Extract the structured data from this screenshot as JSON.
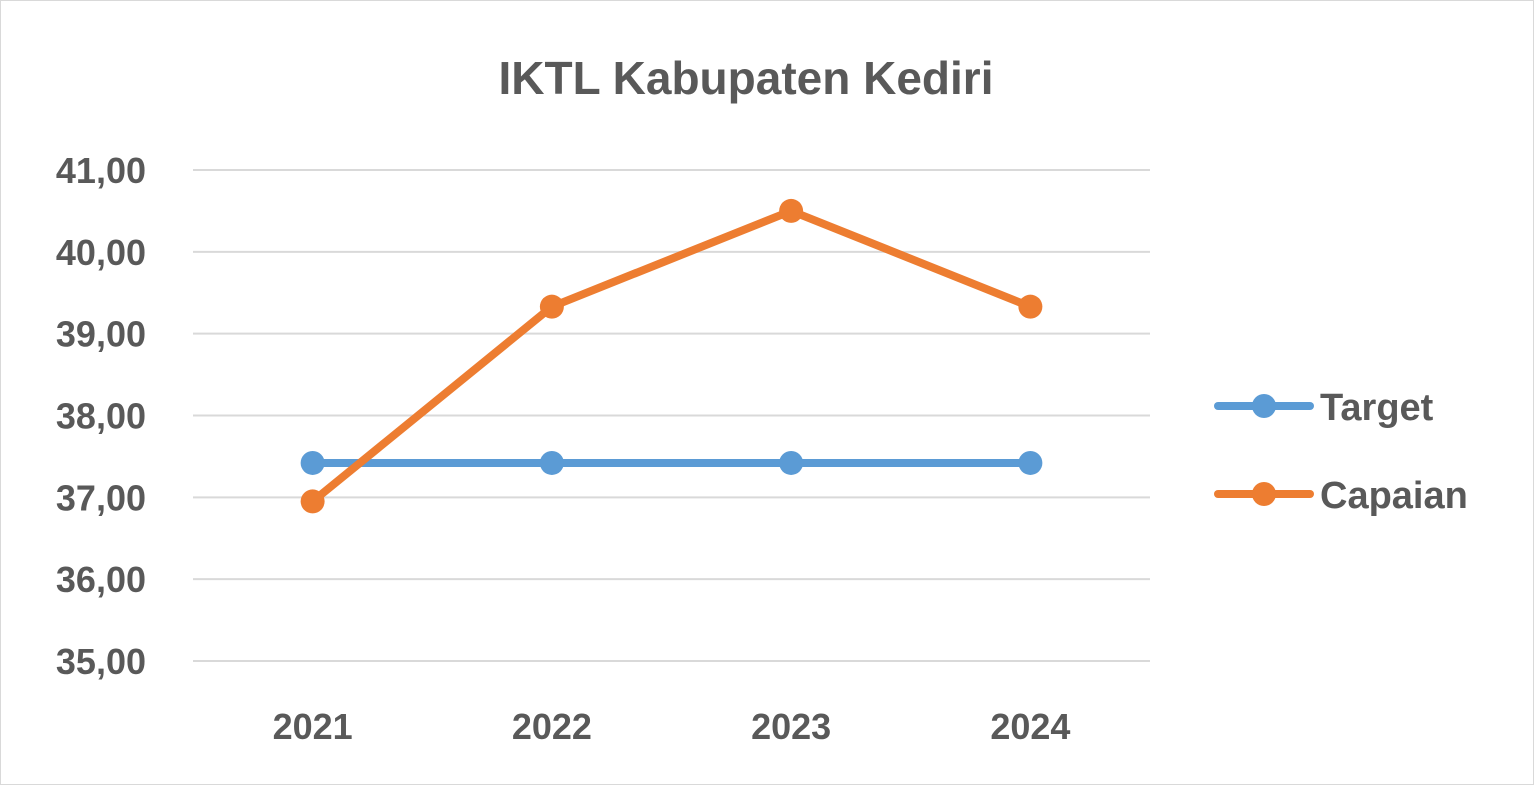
{
  "chart_data": {
    "type": "line",
    "title": "IKTL Kabupaten Kediri",
    "xlabel": "",
    "ylabel": "",
    "categories": [
      "2021",
      "2022",
      "2023",
      "2024"
    ],
    "ylim": [
      35,
      41
    ],
    "yticks": [
      "35,00",
      "36,00",
      "37,00",
      "38,00",
      "39,00",
      "40,00",
      "41,00"
    ],
    "grid": true,
    "legend_position": "right",
    "series": [
      {
        "name": "Target",
        "color": "#5b9bd5",
        "values": [
          37.42,
          37.42,
          37.42,
          37.42
        ]
      },
      {
        "name": "Capaian",
        "color": "#ed7d31",
        "values": [
          36.95,
          39.33,
          40.5,
          39.33
        ]
      }
    ]
  }
}
